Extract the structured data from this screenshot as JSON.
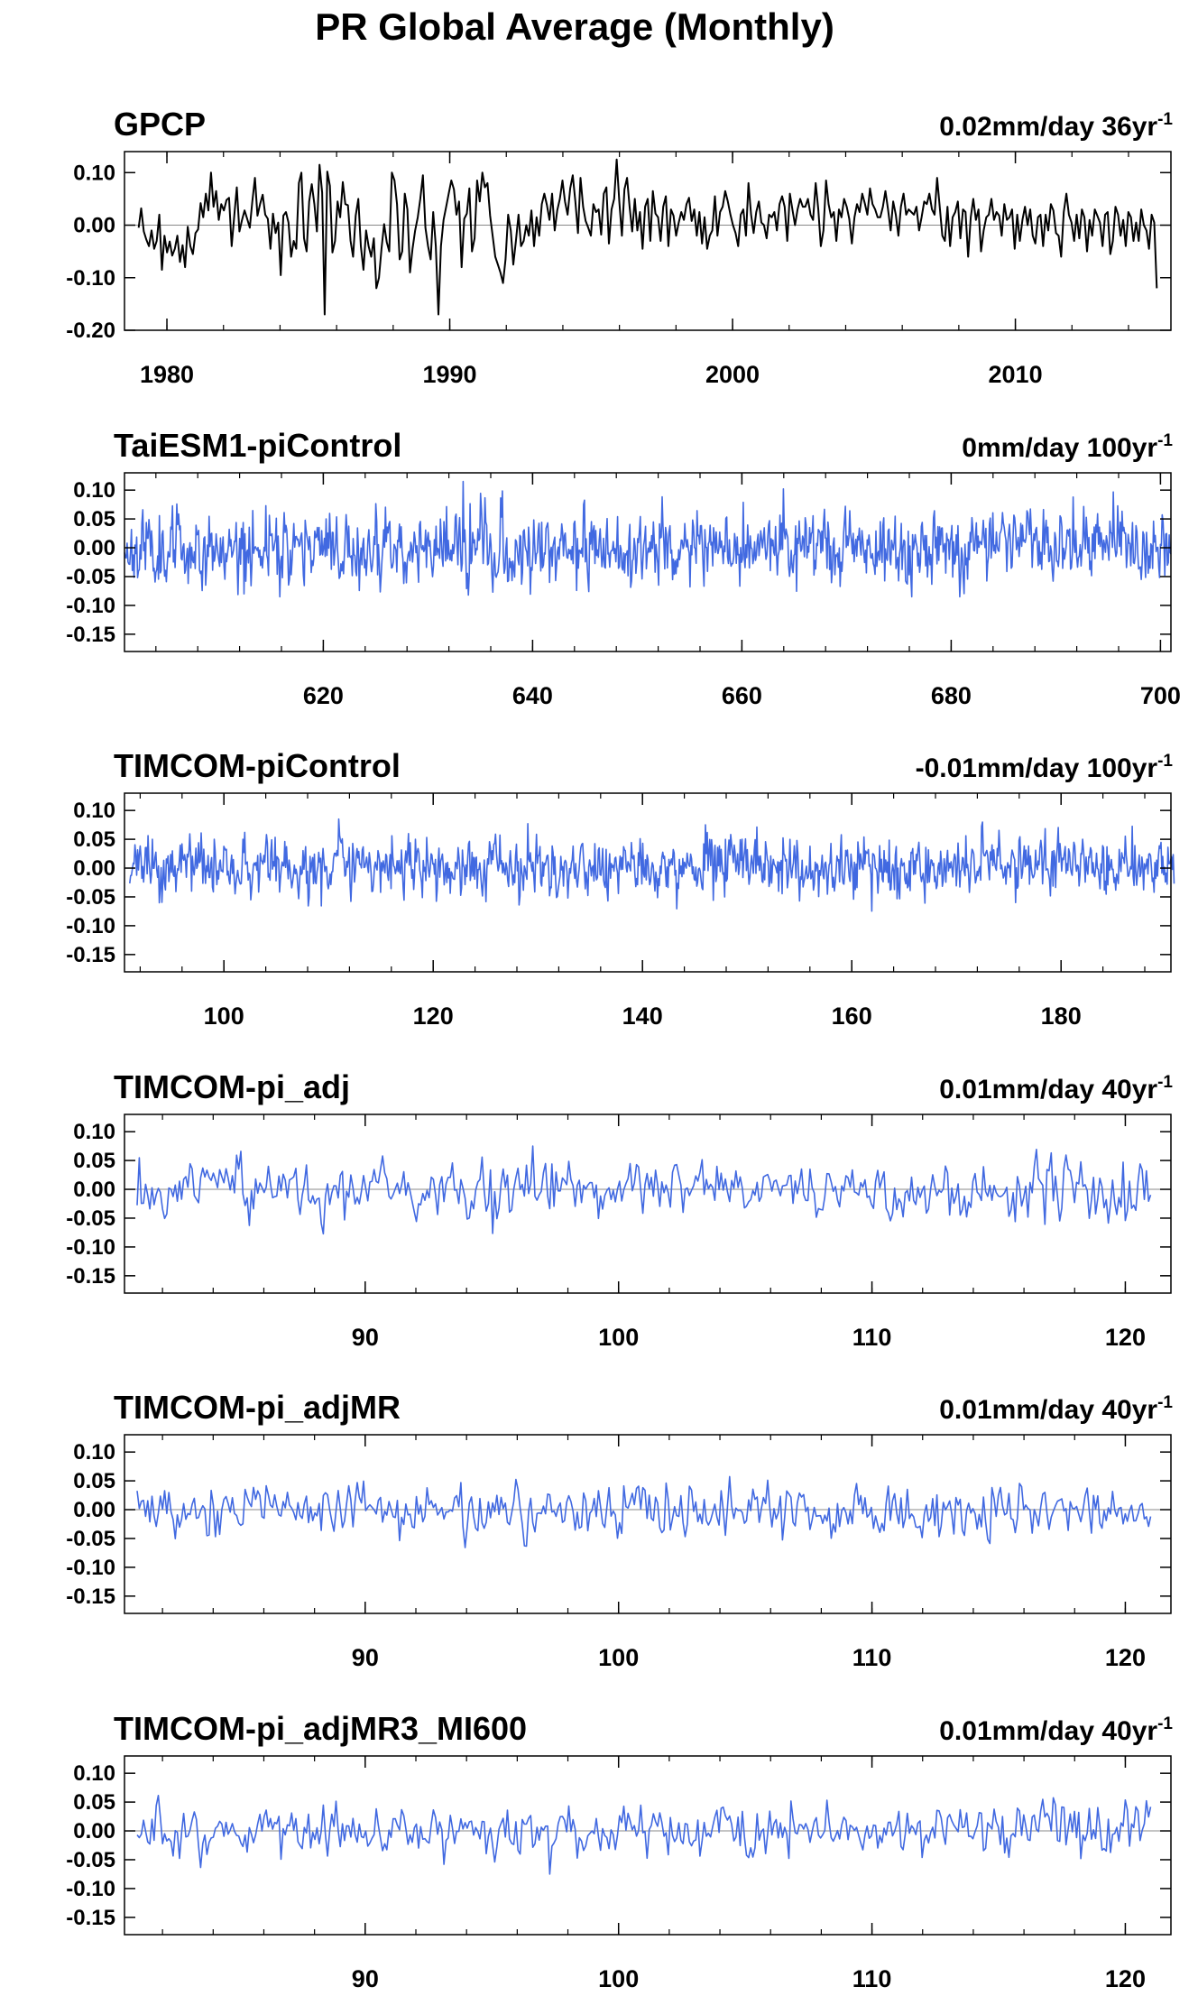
{
  "figure_title": "PR Global Average (Monthly)",
  "colors": {
    "observed": "#000000",
    "model": "#4169E1",
    "axis": "#000000",
    "zero_line": "#888888"
  },
  "chart_data": [
    {
      "type": "line",
      "title": "GPCP",
      "trend": {
        "value": "0.02mm/day 36yr",
        "superscript": "-1"
      },
      "color": "#000000",
      "x_range": [
        1978.5,
        2015.5
      ],
      "ylim": [
        -0.2,
        0.14
      ],
      "yticks": [
        0.1,
        0.0,
        -0.1,
        -0.2
      ],
      "ytick_labels": [
        "0.10",
        "0.00",
        "-0.10",
        "-0.20"
      ],
      "xticks": [
        1980,
        1990,
        2000,
        2010
      ],
      "xtick_labels": [
        "1980",
        "1990",
        "2000",
        "2010"
      ],
      "zero_line": true,
      "series": [
        {
          "x_start": 1979.0,
          "x_end": 2015.0,
          "values": [
            -0.005,
            0.032,
            -0.012,
            -0.028,
            -0.04,
            -0.01,
            -0.045,
            -0.03,
            0.02,
            -0.085,
            -0.02,
            -0.052,
            -0.031,
            -0.058,
            -0.045,
            -0.02,
            -0.07,
            -0.038,
            -0.08,
            -0.003,
            -0.04,
            -0.055,
            -0.015,
            -0.008,
            0.042,
            0.015,
            0.06,
            0.028,
            0.1,
            0.035,
            0.065,
            0.01,
            0.04,
            0.028,
            0.048,
            0.052,
            -0.04,
            0.018,
            0.072,
            -0.012,
            0.01,
            0.028,
            0.012,
            -0.005,
            0.045,
            0.09,
            0.018,
            0.04,
            0.058,
            0.02,
            0.012,
            -0.045,
            0.022,
            -0.015,
            0.005,
            -0.095,
            0.018,
            0.025,
            0.005,
            -0.06,
            -0.03,
            -0.045,
            0.08,
            0.1,
            -0.025,
            -0.05,
            0.045,
            0.078,
            0.04,
            -0.012,
            0.115,
            0.062,
            -0.17,
            0.102,
            0.075,
            -0.052,
            -0.03,
            0.045,
            0.015,
            0.082,
            0.04,
            0.038,
            -0.03,
            -0.06,
            0.018,
            0.05,
            -0.04,
            -0.085,
            -0.01,
            -0.04,
            -0.06,
            -0.025,
            -0.12,
            -0.1,
            -0.045,
            0.002,
            -0.032,
            -0.05,
            0.1,
            0.085,
            0.04,
            -0.065,
            -0.05,
            0.06,
            0.03,
            -0.09,
            -0.045,
            -0.01,
            0.015,
            0.05,
            0.095,
            -0.005,
            -0.04,
            -0.065,
            0.025,
            -0.04,
            -0.17,
            -0.04,
            0.01,
            0.035,
            0.06,
            0.085,
            0.068,
            0.02,
            0.045,
            -0.08,
            0.012,
            0.022,
            0.07,
            -0.05,
            -0.025,
            0.085,
            0.045,
            0.1,
            0.072,
            0.08,
            0.018,
            -0.02,
            -0.06,
            -0.075,
            -0.09,
            -0.11,
            -0.065,
            0.02,
            -0.01,
            -0.075,
            -0.03,
            0.02,
            -0.04,
            -0.03,
            0.0,
            -0.02,
            0.028,
            -0.04,
            0.015,
            -0.02,
            0.04,
            0.06,
            0.038,
            0.01,
            0.06,
            -0.01,
            0.028,
            0.05,
            0.085,
            0.045,
            0.02,
            0.07,
            0.095,
            0.045,
            -0.015,
            0.09,
            0.035,
            0.008,
            -0.005,
            -0.02,
            0.04,
            0.025,
            0.03,
            -0.018,
            0.06,
            0.072,
            -0.035,
            0.03,
            0.05,
            0.125,
            0.045,
            -0.02,
            0.068,
            0.09,
            0.035,
            -0.012,
            0.05,
            -0.01,
            0.025,
            -0.045,
            0.035,
            0.05,
            -0.03,
            0.065,
            0.022,
            0.015,
            -0.03,
            0.035,
            0.055,
            -0.04,
            0.03,
            0.018,
            -0.02,
            0.005,
            0.025,
            0.01,
            0.04,
            0.052,
            0.008,
            0.03,
            -0.02,
            0.025,
            -0.035,
            0.015,
            -0.045,
            -0.02,
            -0.01,
            0.055,
            -0.02,
            0.025,
            0.035,
            0.065,
            0.045,
            0.02,
            0.0,
            -0.015,
            -0.04,
            0.02,
            0.03,
            -0.02,
            0.08,
            0.02,
            -0.015,
            0.025,
            0.045,
            0.005,
            0.0,
            -0.025,
            0.02,
            0.015,
            0.025,
            -0.01,
            0.04,
            0.055,
            0.035,
            -0.03,
            0.06,
            0.03,
            0.0,
            0.03,
            0.05,
            0.035,
            0.035,
            0.05,
            0.02,
            0.01,
            0.08,
            0.03,
            -0.04,
            -0.01,
            0.085,
            0.04,
            0.015,
            0.025,
            -0.03,
            0.03,
            0.015,
            0.05,
            0.035,
            0.012,
            -0.035,
            0.015,
            0.04,
            0.025,
            0.06,
            0.042,
            0.02,
            0.07,
            0.04,
            0.03,
            0.015,
            0.015,
            0.035,
            0.065,
            0.03,
            -0.01,
            0.045,
            0.02,
            -0.02,
            0.035,
            0.06,
            0.02,
            0.03,
            0.025,
            0.02,
            0.035,
            -0.01,
            0.015,
            0.045,
            0.04,
            0.06,
            0.03,
            0.02,
            0.09,
            0.035,
            -0.02,
            -0.03,
            0.035,
            -0.04,
            0.015,
            0.025,
            0.045,
            -0.025,
            0.03,
            0.025,
            -0.06,
            0.015,
            0.05,
            0.01,
            0.03,
            -0.05,
            -0.01,
            0.015,
            0.02,
            0.05,
            0.01,
            0.025,
            0.018,
            -0.02,
            0.04,
            0.01,
            0.015,
            0.03,
            -0.045,
            0.02,
            -0.03,
            0.01,
            0.035,
            0.0,
            0.03,
            -0.02,
            -0.035,
            0.015,
            0.02,
            -0.04,
            0.02,
            -0.01,
            0.04,
            0.028,
            -0.015,
            -0.02,
            -0.06,
            0.025,
            0.06,
            0.02,
            0.005,
            -0.03,
            0.02,
            -0.025,
            0.03,
            0.015,
            -0.05,
            0.01,
            -0.02,
            0.03,
            0.018,
            0.005,
            -0.04,
            0.02,
            0.025,
            -0.055,
            -0.03,
            0.035,
            0.02,
            -0.02,
            0.01,
            -0.04,
            0.025,
            0.015,
            -0.03,
            0.005,
            -0.03,
            0.03,
            0.0,
            -0.01,
            -0.045,
            0.02,
            0.005,
            -0.12
          ]
        }
      ]
    },
    {
      "type": "line",
      "title": "TaiESM1-piControl",
      "trend": {
        "value": "0mm/day 100yr",
        "superscript": "-1"
      },
      "color": "#4169E1",
      "x_range": [
        601,
        701
      ],
      "ylim": [
        -0.18,
        0.13
      ],
      "yticks": [
        0.1,
        0.05,
        0.0,
        -0.05,
        -0.1,
        -0.15
      ],
      "ytick_labels": [
        "0.10",
        "0.05",
        "0.00",
        "-0.05",
        "-0.10",
        "-0.15"
      ],
      "xticks": [
        620,
        640,
        660,
        680,
        700
      ],
      "xtick_labels": [
        "620",
        "640",
        "660",
        "680",
        "700"
      ],
      "zero_line": false,
      "series": [
        {
          "x_start": 601.0,
          "x_end": 701.0,
          "n": 1200,
          "seed": 11,
          "amp": 0.03,
          "clip": [
            -0.085,
            0.115
          ]
        }
      ]
    },
    {
      "type": "line",
      "title": "TIMCOM-piControl",
      "trend": {
        "value": "-0.01mm/day 100yr",
        "superscript": "-1"
      },
      "color": "#4169E1",
      "x_range": [
        90.5,
        190.5
      ],
      "ylim": [
        -0.18,
        0.13
      ],
      "yticks": [
        0.1,
        0.05,
        0.0,
        -0.05,
        -0.1,
        -0.15
      ],
      "ytick_labels": [
        "0.10",
        "0.05",
        "0.00",
        "-0.05",
        "-0.10",
        "-0.15"
      ],
      "xticks": [
        100,
        120,
        140,
        160,
        180
      ],
      "xtick_labels": [
        "100",
        "120",
        "140",
        "160",
        "180"
      ],
      "zero_line": false,
      "series": [
        {
          "x_start": 91.0,
          "x_end": 190.8,
          "n": 1200,
          "seed": 23,
          "amp": 0.024,
          "clip": [
            -0.075,
            0.085
          ]
        }
      ]
    },
    {
      "type": "line",
      "title": "TIMCOM-pi_adj",
      "trend": {
        "value": "0.01mm/day 40yr",
        "superscript": "-1"
      },
      "color": "#4169E1",
      "x_range": [
        80.5,
        121.8
      ],
      "ylim": [
        -0.18,
        0.13
      ],
      "yticks": [
        0.1,
        0.05,
        0.0,
        -0.05,
        -0.1,
        -0.15
      ],
      "ytick_labels": [
        "0.10",
        "0.05",
        "0.00",
        "-0.05",
        "-0.10",
        "-0.15"
      ],
      "xticks": [
        90,
        100,
        110,
        120
      ],
      "xtick_labels": [
        "90",
        "100",
        "110",
        "120"
      ],
      "zero_line": true,
      "series": [
        {
          "x_start": 81.0,
          "x_end": 121.0,
          "n": 480,
          "seed": 37,
          "amp": 0.025,
          "clip": [
            -0.085,
            0.075
          ]
        }
      ]
    },
    {
      "type": "line",
      "title": "TIMCOM-pi_adjMR",
      "trend": {
        "value": "0.01mm/day 40yr",
        "superscript": "-1"
      },
      "color": "#4169E1",
      "x_range": [
        80.5,
        121.8
      ],
      "ylim": [
        -0.18,
        0.13
      ],
      "yticks": [
        0.1,
        0.05,
        0.0,
        -0.05,
        -0.1,
        -0.15
      ],
      "ytick_labels": [
        "0.10",
        "0.05",
        "0.00",
        "-0.05",
        "-0.10",
        "-0.15"
      ],
      "xticks": [
        90,
        100,
        110,
        120
      ],
      "xtick_labels": [
        "90",
        "100",
        "110",
        "120"
      ],
      "zero_line": true,
      "series": [
        {
          "x_start": 81.0,
          "x_end": 121.0,
          "n": 480,
          "seed": 53,
          "amp": 0.023,
          "clip": [
            -0.08,
            0.08
          ]
        }
      ]
    },
    {
      "type": "line",
      "title": "TIMCOM-pi_adjMR3_MI600",
      "trend": {
        "value": "0.01mm/day 40yr",
        "superscript": "-1"
      },
      "color": "#4169E1",
      "x_range": [
        80.5,
        121.8
      ],
      "ylim": [
        -0.18,
        0.13
      ],
      "yticks": [
        0.1,
        0.05,
        0.0,
        -0.05,
        -0.1,
        -0.15
      ],
      "ytick_labels": [
        "0.10",
        "0.05",
        "0.00",
        "-0.05",
        "-0.10",
        "-0.15"
      ],
      "xticks": [
        90,
        100,
        110,
        120
      ],
      "xtick_labels": [
        "90",
        "100",
        "110",
        "120"
      ],
      "zero_line": true,
      "series": [
        {
          "x_start": 81.0,
          "x_end": 121.0,
          "n": 480,
          "seed": 71,
          "amp": 0.022,
          "clip": [
            -0.075,
            0.085
          ]
        }
      ]
    }
  ]
}
